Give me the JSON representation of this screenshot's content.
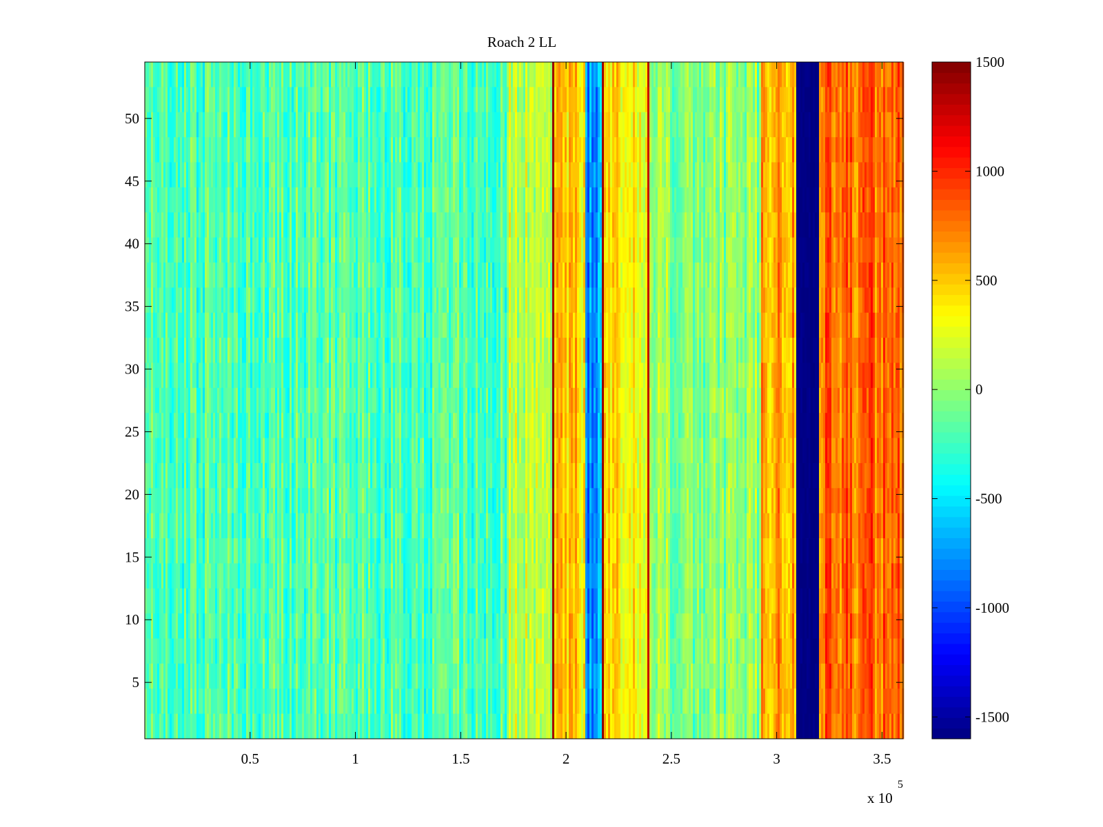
{
  "chart_data": {
    "type": "heatmap",
    "title": "Roach 2 LL",
    "xlabel": "",
    "ylabel": "",
    "x_exponent_label": "x 10",
    "x_exponent_power": "5",
    "xlim": [
      0,
      3.6
    ],
    "ylim": [
      0.5,
      54.5
    ],
    "x_ticks": [
      0.5,
      1,
      1.5,
      2,
      2.5,
      3,
      3.5
    ],
    "x_tick_labels": [
      "0.5",
      "1",
      "1.5",
      "2",
      "2.5",
      "3",
      "3.5"
    ],
    "y_ticks": [
      5,
      10,
      15,
      20,
      25,
      30,
      35,
      40,
      45,
      50
    ],
    "y_tick_labels": [
      "5",
      "10",
      "15",
      "20",
      "25",
      "30",
      "35",
      "40",
      "45",
      "50"
    ],
    "colormap": "jet",
    "clim": [
      -1600,
      1500
    ],
    "colorbar_ticks": [
      1500,
      1000,
      500,
      0,
      -500,
      -1000,
      -1500
    ],
    "colorbar_tick_labels": [
      "1500",
      "1000",
      "500",
      "0",
      "-500",
      "-1000",
      "-1500"
    ],
    "rows": 54,
    "column_profile": [
      {
        "x_from": 0.0,
        "x_to": 1.73,
        "mean_value": -200
      },
      {
        "x_from": 1.73,
        "x_to": 1.93,
        "mean_value": 150
      },
      {
        "x_from": 1.93,
        "x_to": 1.94,
        "mean_value": 1450
      },
      {
        "x_from": 1.94,
        "x_to": 2.09,
        "mean_value": 450
      },
      {
        "x_from": 2.09,
        "x_to": 2.17,
        "mean_value": -750
      },
      {
        "x_from": 2.17,
        "x_to": 2.18,
        "mean_value": 1400
      },
      {
        "x_from": 2.18,
        "x_to": 2.39,
        "mean_value": 380
      },
      {
        "x_from": 2.39,
        "x_to": 2.4,
        "mean_value": 1300
      },
      {
        "x_from": 2.4,
        "x_to": 2.93,
        "mean_value": -30
      },
      {
        "x_from": 2.93,
        "x_to": 3.09,
        "mean_value": 600
      },
      {
        "x_from": 3.09,
        "x_to": 3.2,
        "mean_value": -1600
      },
      {
        "x_from": 3.2,
        "x_to": 3.6,
        "mean_value": 820
      }
    ],
    "grid": false,
    "legend": "none"
  }
}
